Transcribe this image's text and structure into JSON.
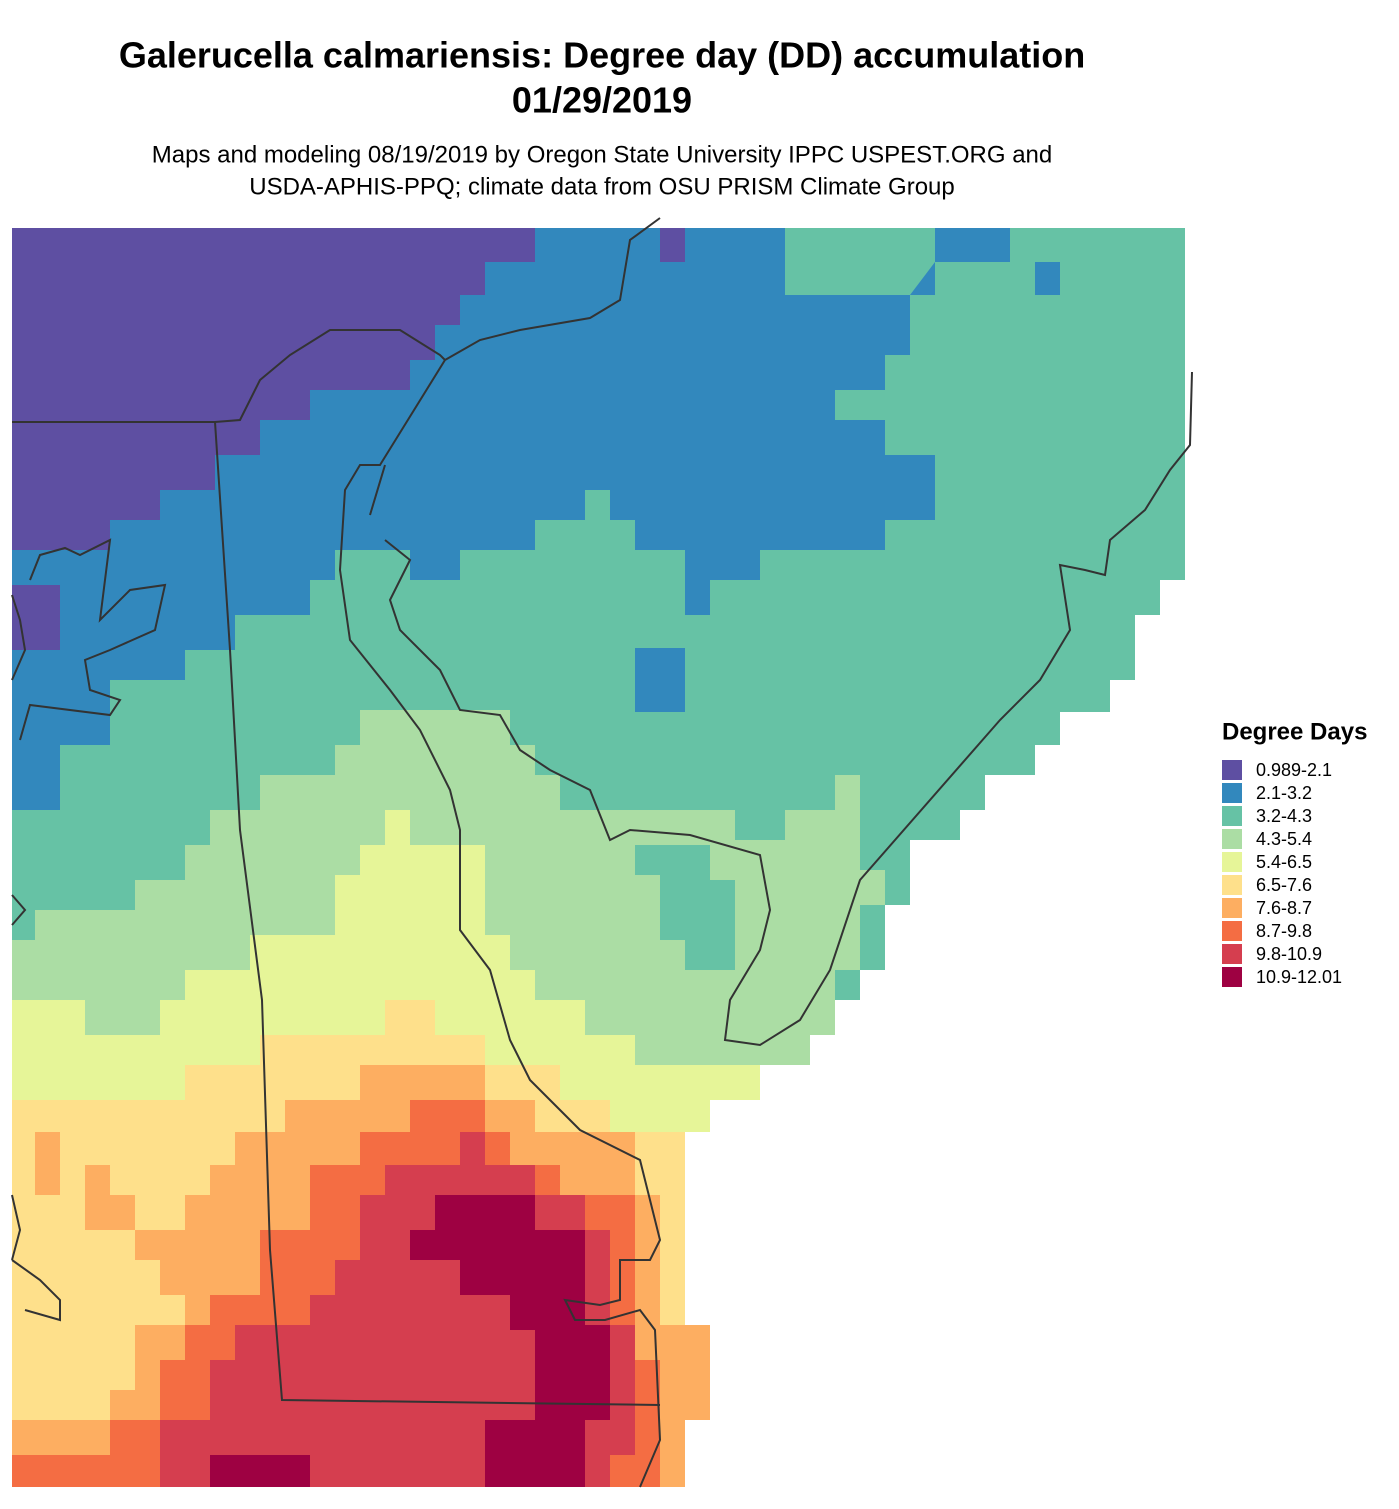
{
  "header": {
    "title_lines": [
      "Galerucella calmariensis: Degree day (DD) accumulation",
      "01/29/2019"
    ],
    "subtitle_lines": [
      "Maps and modeling 08/19/2019 by Oregon State University IPPC USPEST.ORG and",
      "USDA-APHIS-PPQ; climate data from OSU PRISM Climate Group"
    ]
  },
  "legend": {
    "title": "Degree Days",
    "items": [
      {
        "label": "0.989-2.1",
        "color": "#5e4fa2"
      },
      {
        "label": "2.1-3.2",
        "color": "#3288bd"
      },
      {
        "label": "3.2-4.3",
        "color": "#66c2a5"
      },
      {
        "label": "4.3-5.4",
        "color": "#abdda4"
      },
      {
        "label": "5.4-6.5",
        "color": "#e6f598"
      },
      {
        "label": "6.5-7.6",
        "color": "#fee08b"
      },
      {
        "label": "7.6-8.7",
        "color": "#fdae61"
      },
      {
        "label": "8.7-9.8",
        "color": "#f46d43"
      },
      {
        "label": "9.8-10.9",
        "color": "#d53e4f"
      },
      {
        "label": "10.9-12.01",
        "color": "#9e0142"
      }
    ]
  }
}
